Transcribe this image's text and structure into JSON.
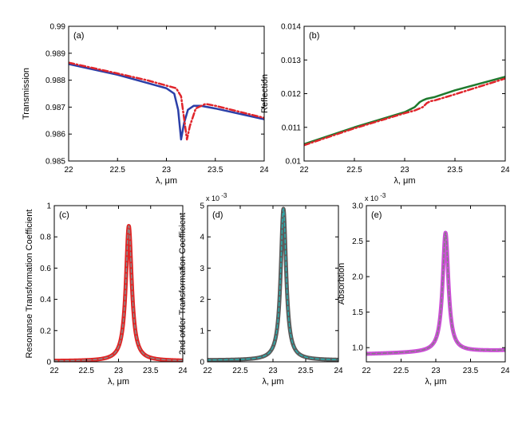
{
  "figure": {
    "title": ""
  },
  "chart_data": [
    {
      "id": "a",
      "type": "line",
      "panel_label": "(a)",
      "xlabel": "λ, μm",
      "ylabel": "Transmission",
      "xlim": [
        22,
        24
      ],
      "ylim": [
        0.985,
        0.99
      ],
      "xticks": [
        22,
        22.5,
        23,
        23.5,
        24
      ],
      "xtick_labels": [
        "22",
        "22.5",
        "23",
        "23.5",
        "24"
      ],
      "yticks": [
        0.985,
        0.986,
        0.987,
        0.988,
        0.989,
        0.99
      ],
      "ytick_labels": [
        "0.985",
        "0.986",
        "0.987",
        "0.988",
        "0.989",
        "0.99"
      ],
      "exponent_label": "",
      "grid": false,
      "series": [
        {
          "name": "blue solid",
          "color": "#2b3fa8",
          "dash": "solid",
          "width": 2.5,
          "x": [
            22,
            22.5,
            22.8,
            23.0,
            23.08,
            23.12,
            23.15,
            23.18,
            23.22,
            23.28,
            23.35,
            23.5,
            24
          ],
          "y": [
            0.9886,
            0.9882,
            0.9879,
            0.9877,
            0.9875,
            0.9869,
            0.9858,
            0.9864,
            0.9869,
            0.98705,
            0.98705,
            0.98695,
            0.98655
          ]
        },
        {
          "name": "red dash-dot",
          "color": "#e0252b",
          "dash": "dashdot",
          "width": 2.5,
          "x": [
            22,
            22.5,
            22.8,
            23.0,
            23.1,
            23.15,
            23.18,
            23.21,
            23.24,
            23.3,
            23.4,
            23.5,
            24
          ],
          "y": [
            0.98865,
            0.98825,
            0.988,
            0.9878,
            0.9877,
            0.9874,
            0.9866,
            0.9858,
            0.9863,
            0.98695,
            0.98712,
            0.98705,
            0.9866
          ]
        }
      ]
    },
    {
      "id": "b",
      "type": "line",
      "panel_label": "(b)",
      "xlabel": "λ, μm",
      "ylabel": "Reflection",
      "xlim": [
        22,
        24
      ],
      "ylim": [
        0.01,
        0.014
      ],
      "xticks": [
        22,
        22.5,
        23,
        23.5,
        24
      ],
      "xtick_labels": [
        "22",
        "22.5",
        "23",
        "23.5",
        "24"
      ],
      "yticks": [
        0.01,
        0.011,
        0.012,
        0.013,
        0.014
      ],
      "ytick_labels": [
        "0.01",
        "0.011",
        "0.012",
        "0.013",
        "0.014"
      ],
      "exponent_label": "",
      "grid": false,
      "series": [
        {
          "name": "green solid",
          "color": "#1f7a2e",
          "dash": "solid",
          "width": 2.5,
          "x": [
            22,
            22.5,
            23.0,
            23.1,
            23.15,
            23.18,
            23.22,
            23.3,
            23.5,
            24
          ],
          "y": [
            0.0105,
            0.011,
            0.01145,
            0.0116,
            0.01175,
            0.0118,
            0.01185,
            0.0119,
            0.0121,
            0.0125
          ]
        },
        {
          "name": "red dash-dot",
          "color": "#e0252b",
          "dash": "dashdot",
          "width": 2.5,
          "x": [
            22,
            22.5,
            23.0,
            23.1,
            23.18,
            23.22,
            23.26,
            23.3,
            23.5,
            24
          ],
          "y": [
            0.01047,
            0.01097,
            0.01142,
            0.0115,
            0.0116,
            0.01172,
            0.01178,
            0.0118,
            0.01198,
            0.01245
          ]
        }
      ]
    },
    {
      "id": "c",
      "type": "line",
      "panel_label": "(c)",
      "xlabel": "λ, μm",
      "ylabel": "Resonanse Transformation Coefficient",
      "xlim": [
        22,
        24
      ],
      "ylim": [
        0,
        1
      ],
      "xticks": [
        22,
        22.5,
        23,
        23.5,
        24
      ],
      "xtick_labels": [
        "22",
        "22.5",
        "23",
        "23.5",
        "24"
      ],
      "yticks": [
        0,
        0.2,
        0.4,
        0.6,
        0.8,
        1
      ],
      "ytick_labels": [
        "0",
        "0.2",
        "0.4",
        "0.6",
        "0.8",
        "1"
      ],
      "exponent_label": "",
      "grid": false,
      "peak": {
        "x0": 23.16,
        "amp": 0.865,
        "base": 0.005,
        "gamma": 0.055
      },
      "series": [
        {
          "name": "red thick",
          "color": "#e02626",
          "dash": "solid",
          "width": 5
        },
        {
          "name": "gray dashed",
          "color": "#8a8a8a",
          "dash": "dashed",
          "width": 1.5
        }
      ]
    },
    {
      "id": "d",
      "type": "line",
      "panel_label": "(d)",
      "xlabel": "λ, μm",
      "ylabel": "2nd order Transformation Coefficient",
      "xlim": [
        22,
        24
      ],
      "ylim": [
        0,
        5
      ],
      "xticks": [
        22,
        22.5,
        23,
        23.5,
        24
      ],
      "xtick_labels": [
        "22",
        "22.5",
        "23",
        "23.5",
        "24"
      ],
      "yticks": [
        0,
        1,
        2,
        3,
        4,
        5
      ],
      "ytick_labels": [
        "0",
        "1",
        "2",
        "3",
        "4",
        "5"
      ],
      "exponent_label": "x 10",
      "exponent_power": "-3",
      "grid": false,
      "peak": {
        "x0": 23.16,
        "amp": 4.85,
        "base": 0.05,
        "gamma": 0.05
      },
      "series": [
        {
          "name": "dark gray thick",
          "color": "#5c5c5c",
          "dash": "solid",
          "width": 5
        },
        {
          "name": "teal dashed",
          "color": "#2ab0b0",
          "dash": "dashed",
          "width": 1.5
        }
      ]
    },
    {
      "id": "e",
      "type": "line",
      "panel_label": "(e)",
      "xlabel": "λ, μm",
      "ylabel": "Absorbtion",
      "xlim": [
        22,
        24
      ],
      "ylim": [
        0.8,
        3.0
      ],
      "xticks": [
        22,
        22.5,
        23,
        23.5,
        24
      ],
      "xtick_labels": [
        "22",
        "22.5",
        "23",
        "23.5",
        "24"
      ],
      "yticks": [
        1.0,
        1.5,
        2.0,
        2.5,
        3.0
      ],
      "ytick_labels": [
        "1.0",
        "1.5",
        "2.0",
        "2.5",
        "3.0"
      ],
      "exponent_label": "x 10",
      "exponent_power": "-3",
      "grid": false,
      "peak": {
        "x0": 23.14,
        "amp": 1.68,
        "base": 0.91,
        "slope": 0.025,
        "gamma": 0.05
      },
      "series": [
        {
          "name": "magenta thick",
          "color": "#cc4fd6",
          "dash": "solid",
          "width": 5
        },
        {
          "name": "gray dashed",
          "color": "#808080",
          "dash": "dashed",
          "width": 1.5
        }
      ]
    }
  ]
}
